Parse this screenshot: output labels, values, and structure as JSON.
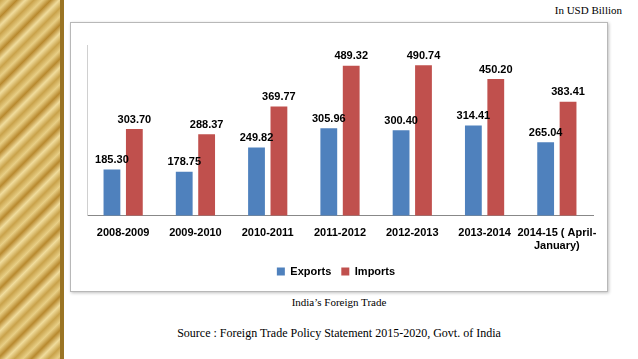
{
  "chart_data": {
    "type": "bar",
    "title": "India’s Foreign Trade",
    "annotations": [
      "In USD Billion",
      "Source : Foreign Trade Policy Statement 2015-2020, Govt. of India"
    ],
    "categories": [
      "2008-2009",
      "2009-2010",
      "2010-2011",
      "2011-2012",
      "2012-2013",
      "2013-2014",
      "2014-15 ( April-January)"
    ],
    "series": [
      {
        "name": "Exports",
        "color": "#4F81BD",
        "values": [
          185.3,
          178.75,
          249.82,
          305.96,
          300.4,
          314.41,
          265.04
        ],
        "value_labels": [
          "185.30",
          "178.75",
          "249.82",
          "305.96",
          "300.40",
          "314.41",
          "265.04"
        ]
      },
      {
        "name": "Imports",
        "color": "#C0504D",
        "values": [
          303.7,
          288.37,
          369.77,
          489.32,
          490.74,
          450.2,
          383.41
        ],
        "value_labels": [
          "303.70",
          "288.37",
          "369.77",
          "489.32",
          "490.74",
          "450.20",
          "383.41"
        ]
      }
    ],
    "ylim": [
      50,
      550
    ],
    "yticks": [
      50,
      150,
      250,
      350,
      450,
      550
    ],
    "grid": false,
    "legend": "bottom",
    "data_labels": true,
    "tick_labels": "x"
  }
}
